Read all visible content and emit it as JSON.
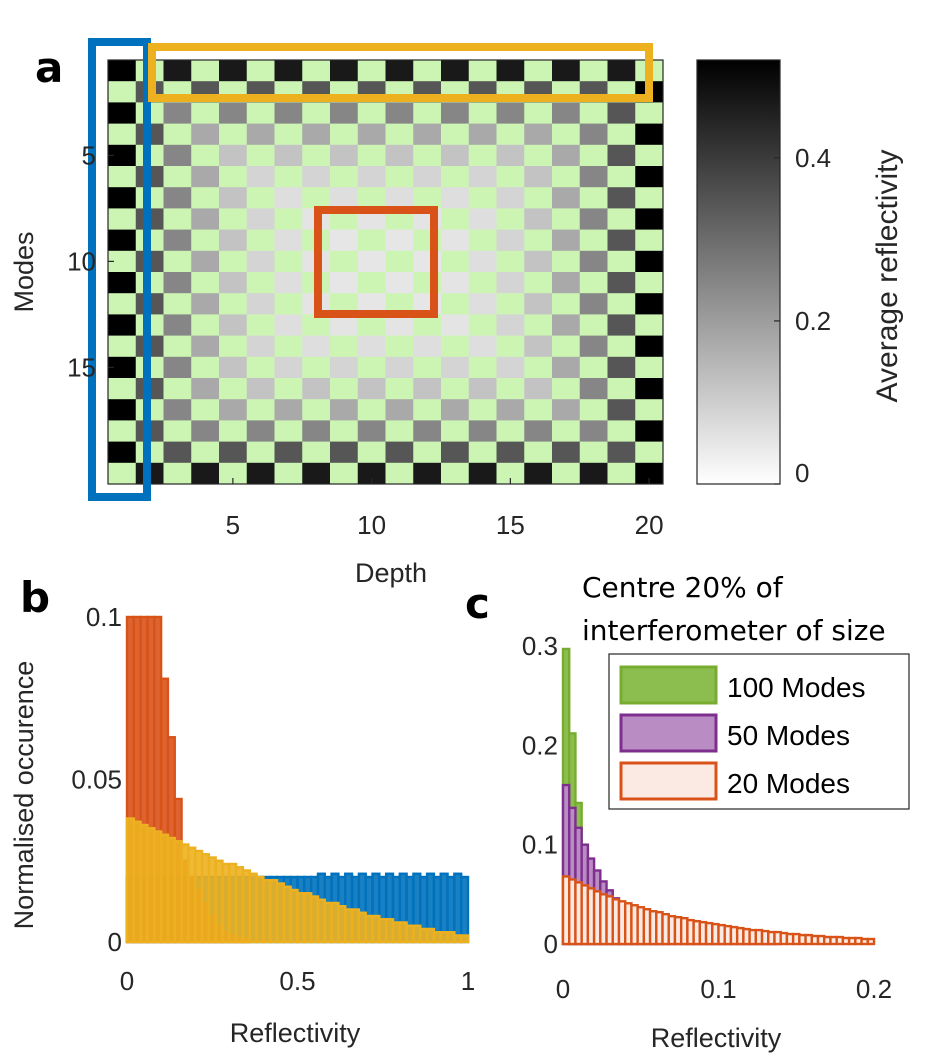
{
  "panels": {
    "a": "a",
    "b": "b",
    "c": "c"
  },
  "chart_data": [
    {
      "id": "a",
      "type": "heatmap",
      "title": "",
      "xlabel": "Depth",
      "ylabel": "Modes",
      "colorbar_label": "Average reflectivity",
      "x_range": [
        1,
        20
      ],
      "y_range": [
        1,
        20
      ],
      "y_reversed": true,
      "x_ticks": [
        5,
        10,
        15,
        20
      ],
      "y_ticks": [
        5,
        10,
        15
      ],
      "colorbar_range": [
        0,
        0.52
      ],
      "colorbar_ticks": [
        0,
        0.2,
        0.4
      ],
      "checkerboard_fill_color": "#ccf5b4",
      "colormap": "gray (white = 0, black = max)",
      "description_of_values": "Checkerboard of reflectivity values; depth 1 and depth 20 columns are ~0.52 (black); interior values decrease toward the centre (~0.05)",
      "highlight_boxes": [
        {
          "name": "first-depth",
          "color": "#0072bd",
          "depth": [
            1,
            1
          ],
          "modes": [
            1,
            20
          ]
        },
        {
          "name": "top-modes",
          "color": "#edb120",
          "depth": [
            2,
            20
          ],
          "modes": [
            1,
            1
          ]
        },
        {
          "name": "centre",
          "color": "#d95319",
          "depth": [
            8,
            12
          ],
          "modes": [
            8,
            12
          ]
        }
      ]
    },
    {
      "id": "b",
      "type": "bar",
      "title": "",
      "xlabel": "Reflectivity",
      "ylabel": "Normalised occurence",
      "xlim": [
        0,
        1
      ],
      "ylim": [
        0,
        0.1
      ],
      "x_ticks": [
        0,
        0.5,
        1
      ],
      "x_tick_labels": [
        "0",
        "0.5",
        "1"
      ],
      "y_ticks": [
        0,
        0.05,
        0.1
      ],
      "y_tick_labels": [
        "0",
        "0.05",
        "0.1"
      ],
      "bin_width": 0.02,
      "series": [
        {
          "color": "#0072bd",
          "values": [
            0.02,
            0.02,
            0.02,
            0.02,
            0.02,
            0.02,
            0.02,
            0.02,
            0.02,
            0.02,
            0.02,
            0.02,
            0.02,
            0.02,
            0.02,
            0.02,
            0.02,
            0.02,
            0.02,
            0.02,
            0.02,
            0.02,
            0.02,
            0.02,
            0.02,
            0.02,
            0.02,
            0.02,
            0.021,
            0.02,
            0.021,
            0.02,
            0.021,
            0.02,
            0.021,
            0.02,
            0.021,
            0.02,
            0.021,
            0.02,
            0.021,
            0.02,
            0.021,
            0.02,
            0.021,
            0.02,
            0.021,
            0.02,
            0.021,
            0.02
          ]
        },
        {
          "color": "#d95319",
          "values": [
            0.1,
            0.1,
            0.1,
            0.1,
            0.1,
            0.081,
            0.063,
            0.044,
            0.025,
            0.02,
            0.016,
            0.012,
            0.008,
            0.005,
            0.003,
            0.002,
            0.001,
            0.001,
            0,
            0,
            0,
            0,
            0,
            0,
            0,
            0,
            0,
            0,
            0,
            0,
            0,
            0,
            0,
            0,
            0,
            0,
            0,
            0,
            0,
            0,
            0,
            0,
            0,
            0,
            0,
            0,
            0,
            0,
            0,
            0
          ]
        },
        {
          "color": "#edb120",
          "values": [
            0.038,
            0.037,
            0.036,
            0.035,
            0.034,
            0.033,
            0.032,
            0.031,
            0.03,
            0.029,
            0.028,
            0.027,
            0.026,
            0.025,
            0.024,
            0.024,
            0.023,
            0.022,
            0.021,
            0.02,
            0.019,
            0.019,
            0.018,
            0.017,
            0.016,
            0.015,
            0.015,
            0.014,
            0.013,
            0.012,
            0.012,
            0.011,
            0.01,
            0.01,
            0.009,
            0.008,
            0.008,
            0.007,
            0.007,
            0.006,
            0.006,
            0.005,
            0.005,
            0.004,
            0.004,
            0.003,
            0.003,
            0.003,
            0.002,
            0.002
          ]
        }
      ]
    },
    {
      "id": "c",
      "type": "bar",
      "title": "",
      "annotation_lines": [
        "Centre 20% of",
        "interferometer of size"
      ],
      "xlabel": "Reflectivity",
      "ylabel": "",
      "xlim": [
        0,
        0.2
      ],
      "ylim": [
        0,
        0.3
      ],
      "x_ticks": [
        0,
        0.1,
        0.2
      ],
      "x_tick_labels": [
        "0",
        "0.1",
        "0.2"
      ],
      "y_ticks": [
        0,
        0.1,
        0.2,
        0.3
      ],
      "y_tick_labels": [
        "0",
        "0.1",
        "0.2",
        "0.3"
      ],
      "bin_width": 0.004,
      "legend_placement": "top-right",
      "series": [
        {
          "name": "100 Modes",
          "color": "#77ac30",
          "fill": "#8cbe4f",
          "values": [
            0.297,
            0.212,
            0.142,
            0.095,
            0.064,
            0.043,
            0.029,
            0.019,
            0.013,
            0.009,
            0.006,
            0.004,
            0.003,
            0.002,
            0.001,
            0.001,
            0.001,
            0,
            0,
            0,
            0,
            0,
            0,
            0,
            0,
            0,
            0,
            0,
            0,
            0,
            0,
            0,
            0,
            0,
            0,
            0,
            0,
            0,
            0,
            0,
            0,
            0,
            0,
            0,
            0,
            0,
            0,
            0,
            0,
            0
          ]
        },
        {
          "name": "50 Modes",
          "color": "#7e2f8e",
          "fill": "#b98cc4",
          "values": [
            0.16,
            0.137,
            0.117,
            0.1,
            0.086,
            0.074,
            0.063,
            0.054,
            0.046,
            0.039,
            0.034,
            0.029,
            0.025,
            0.021,
            0.018,
            0.015,
            0.013,
            0.011,
            0.01,
            0.008,
            0.007,
            0.006,
            0.005,
            0.004,
            0.004,
            0.003,
            0.003,
            0.002,
            0.002,
            0.002,
            0.001,
            0.001,
            0.001,
            0.001,
            0.001,
            0,
            0,
            0,
            0,
            0,
            0,
            0,
            0,
            0,
            0,
            0,
            0,
            0,
            0,
            0
          ]
        },
        {
          "name": "20 Modes",
          "color": "#d95319",
          "fill": "#fbeae3",
          "values": [
            0.068,
            0.065,
            0.062,
            0.059,
            0.056,
            0.053,
            0.05,
            0.048,
            0.045,
            0.043,
            0.041,
            0.039,
            0.037,
            0.035,
            0.033,
            0.032,
            0.03,
            0.028,
            0.027,
            0.026,
            0.024,
            0.023,
            0.022,
            0.021,
            0.02,
            0.019,
            0.018,
            0.017,
            0.016,
            0.015,
            0.014,
            0.014,
            0.013,
            0.012,
            0.012,
            0.011,
            0.01,
            0.01,
            0.009,
            0.009,
            0.008,
            0.008,
            0.007,
            0.007,
            0.007,
            0.006,
            0.006,
            0.006,
            0.005,
            0.005
          ]
        }
      ]
    }
  ]
}
